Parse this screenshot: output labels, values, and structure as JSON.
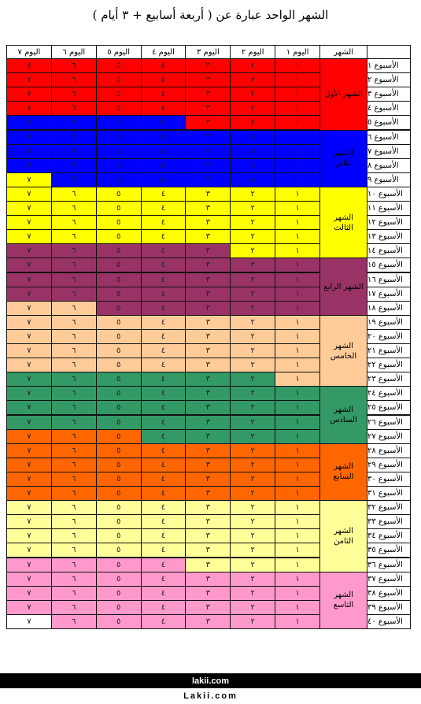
{
  "title": "الشهر الواحد عبارة عن ( أربعة أسابيع + ٣ أيام )",
  "headers": {
    "month": "الشهر",
    "days": [
      "اليوم ١",
      "اليوم ٢",
      "اليوم ٣",
      "اليوم ٤",
      "اليوم ٥",
      "اليوم ٦",
      "اليوم ٧"
    ]
  },
  "colors": {
    "red": "#ff0000",
    "blue": "#0000ff",
    "yellow": "#ffff00",
    "purple": "#993366",
    "peach": "#ffcc99",
    "green": "#339966",
    "orange": "#ff6600",
    "light_yellow": "#ffff99",
    "pink": "#ff99cc",
    "blank": "#ffffff"
  },
  "day_digits": [
    "١",
    "٢",
    "٣",
    "٤",
    "٥",
    "٦",
    "٧"
  ],
  "weeks": [
    "الأسبوع ١",
    "الأسبوع ٢",
    "الأسبوع ٣",
    "الأسبوع ٤",
    "الأسبوع ٥",
    "الأسبوع ٦",
    "الأسبوع ٧",
    "الأسبوع ٨",
    "الأسبوع ٩",
    "الأسبوع ١٠",
    "الأسبوع ١١",
    "الأسبوع ١٢",
    "الأسبوع ١٣",
    "الأسبوع ١٤",
    "الأسبوع ١٥",
    "الأسبوع ١٦",
    "الأسبوع ١٧",
    "الأسبوع ١٨",
    "الأسبوع ١٩",
    "الأسبوع ٢٠",
    "الأسبوع ٢١",
    "الأسبوع ٢٢",
    "الأسبوع ٢٣",
    "الأسبوع ٢٤",
    "الأسبوع ٢٥",
    "الأسبوع ٢٦",
    "الأسبوع ٢٧",
    "الأسبوع ٢٨",
    "الأسبوع ٢٩",
    "الأسبوع ٣٠",
    "الأسبوع ٣١",
    "الأسبوع ٣٢",
    "الأسبوع ٣٣",
    "الأسبوع ٣٤",
    "الأسبوع ٣٥",
    "الأسبوع ٣٦",
    "الأسبوع ٣٧",
    "الأسبوع ٣٨",
    "الأسبوع ٣٩",
    "الأسبوع ٤٠"
  ],
  "months": [
    {
      "name": "الشهر الأول",
      "color": "red",
      "first_week": 1,
      "last_week": 5
    },
    {
      "name": "الشهر الثاني",
      "color": "blue",
      "first_week": 6,
      "last_week": 9
    },
    {
      "name": "الشهر الثالث",
      "color": "yellow",
      "first_week": 10,
      "last_week": 14
    },
    {
      "name": "الشهر الرابع",
      "color": "purple",
      "first_week": 15,
      "last_week": 18
    },
    {
      "name": "الشهر الخامس",
      "color": "peach",
      "first_week": 19,
      "last_week": 23
    },
    {
      "name": "الشهر السادس",
      "color": "green",
      "first_week": 24,
      "last_week": 27
    },
    {
      "name": "الشهر السابع",
      "color": "orange",
      "first_week": 28,
      "last_week": 31
    },
    {
      "name": "الشهر الثامن",
      "color": "light_yellow",
      "first_week": 32,
      "last_week": 36
    },
    {
      "name": "الشهر التاسع",
      "color": "pink",
      "first_week": 37,
      "last_week": 40
    }
  ],
  "day_rows": [
    [
      "red",
      "red",
      "red",
      "red",
      "red",
      "red",
      "red"
    ],
    [
      "red",
      "red",
      "red",
      "red",
      "red",
      "red",
      "red"
    ],
    [
      "red",
      "red",
      "red",
      "red",
      "red",
      "red",
      "red"
    ],
    [
      "red",
      "red",
      "red",
      "red",
      "red",
      "red",
      "red"
    ],
    [
      "red",
      "red",
      "red",
      "blue",
      "blue",
      "blue",
      "blue"
    ],
    [
      "blue",
      "blue",
      "blue",
      "blue",
      "blue",
      "blue",
      "blue"
    ],
    [
      "blue",
      "blue",
      "blue",
      "blue",
      "blue",
      "blue",
      "blue"
    ],
    [
      "blue",
      "blue",
      "blue",
      "blue",
      "blue",
      "blue",
      "blue"
    ],
    [
      "blue",
      "blue",
      "blue",
      "blue",
      "blue",
      "blue",
      "yellow"
    ],
    [
      "yellow",
      "yellow",
      "yellow",
      "yellow",
      "yellow",
      "yellow",
      "yellow"
    ],
    [
      "yellow",
      "yellow",
      "yellow",
      "yellow",
      "yellow",
      "yellow",
      "yellow"
    ],
    [
      "yellow",
      "yellow",
      "yellow",
      "yellow",
      "yellow",
      "yellow",
      "yellow"
    ],
    [
      "yellow",
      "yellow",
      "yellow",
      "yellow",
      "yellow",
      "yellow",
      "yellow"
    ],
    [
      "yellow",
      "yellow",
      "purple",
      "purple",
      "purple",
      "purple",
      "purple"
    ],
    [
      "purple",
      "purple",
      "purple",
      "purple",
      "purple",
      "purple",
      "purple"
    ],
    [
      "purple",
      "purple",
      "purple",
      "purple",
      "purple",
      "purple",
      "purple"
    ],
    [
      "purple",
      "purple",
      "purple",
      "purple",
      "purple",
      "purple",
      "purple"
    ],
    [
      "purple",
      "purple",
      "purple",
      "purple",
      "purple",
      "peach",
      "peach"
    ],
    [
      "peach",
      "peach",
      "peach",
      "peach",
      "peach",
      "peach",
      "peach"
    ],
    [
      "peach",
      "peach",
      "peach",
      "peach",
      "peach",
      "peach",
      "peach"
    ],
    [
      "peach",
      "peach",
      "peach",
      "peach",
      "peach",
      "peach",
      "peach"
    ],
    [
      "peach",
      "peach",
      "peach",
      "peach",
      "peach",
      "peach",
      "peach"
    ],
    [
      "peach",
      "green",
      "green",
      "green",
      "green",
      "green",
      "green"
    ],
    [
      "green",
      "green",
      "green",
      "green",
      "green",
      "green",
      "green"
    ],
    [
      "green",
      "green",
      "green",
      "green",
      "green",
      "green",
      "green"
    ],
    [
      "green",
      "green",
      "green",
      "green",
      "green",
      "green",
      "green"
    ],
    [
      "green",
      "green",
      "green",
      "green",
      "orange",
      "orange",
      "orange"
    ],
    [
      "orange",
      "orange",
      "orange",
      "orange",
      "orange",
      "orange",
      "orange"
    ],
    [
      "orange",
      "orange",
      "orange",
      "orange",
      "orange",
      "orange",
      "orange"
    ],
    [
      "orange",
      "orange",
      "orange",
      "orange",
      "orange",
      "orange",
      "orange"
    ],
    [
      "orange",
      "orange",
      "orange",
      "orange",
      "orange",
      "orange",
      "orange"
    ],
    [
      "light_yellow",
      "light_yellow",
      "light_yellow",
      "light_yellow",
      "light_yellow",
      "light_yellow",
      "light_yellow"
    ],
    [
      "light_yellow",
      "light_yellow",
      "light_yellow",
      "light_yellow",
      "light_yellow",
      "light_yellow",
      "light_yellow"
    ],
    [
      "light_yellow",
      "light_yellow",
      "light_yellow",
      "light_yellow",
      "light_yellow",
      "light_yellow",
      "light_yellow"
    ],
    [
      "light_yellow",
      "light_yellow",
      "light_yellow",
      "light_yellow",
      "light_yellow",
      "light_yellow",
      "light_yellow"
    ],
    [
      "light_yellow",
      "light_yellow",
      "light_yellow",
      "pink",
      "pink",
      "pink",
      "pink"
    ],
    [
      "pink",
      "pink",
      "pink",
      "pink",
      "pink",
      "pink",
      "pink"
    ],
    [
      "pink",
      "pink",
      "pink",
      "pink",
      "pink",
      "pink",
      "pink"
    ],
    [
      "pink",
      "pink",
      "pink",
      "pink",
      "pink",
      "pink",
      "pink"
    ],
    [
      "pink",
      "pink",
      "pink",
      "pink",
      "pink",
      "pink",
      "blank"
    ]
  ],
  "footer": {
    "line1": "lakii.com",
    "line2": "Lakii.com"
  }
}
